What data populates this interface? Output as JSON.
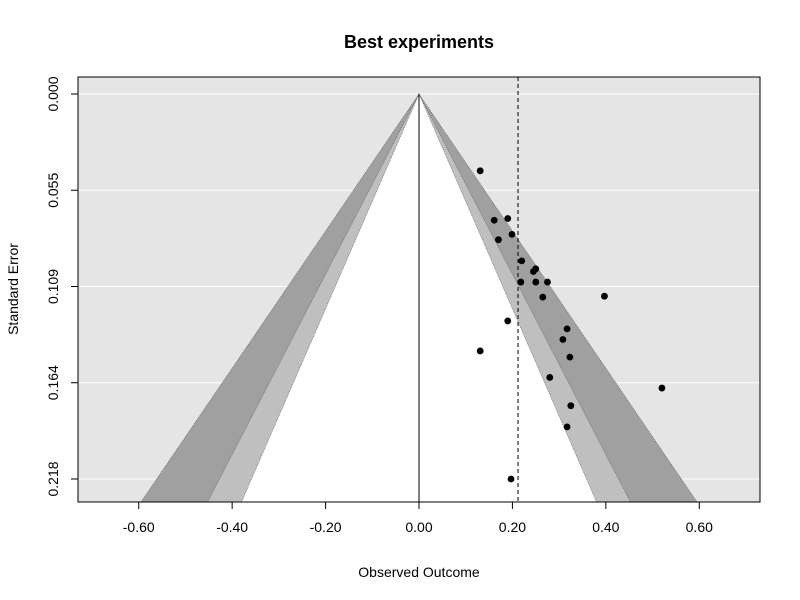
{
  "chart_data": {
    "type": "scatter",
    "title": "Best experiments",
    "xlabel": "Observed Outcome",
    "ylabel": "Standard Error",
    "xlim": [
      -0.73,
      0.73
    ],
    "ylim": [
      0.0,
      0.2265
    ],
    "y_reversed": true,
    "x_ticks": [
      -0.6,
      -0.4,
      -0.2,
      0.0,
      0.2,
      0.4,
      0.6
    ],
    "x_tick_labels": [
      "-0.60",
      "-0.40",
      "-0.20",
      "0.00",
      "0.20",
      "0.40",
      "0.60"
    ],
    "y_ticks": [
      0.0,
      0.0545,
      0.109,
      0.1635,
      0.218
    ],
    "y_tick_labels": [
      "0.000",
      "0.055",
      "0.109",
      "0.164",
      "0.218"
    ],
    "grid": true,
    "contour_funnel": {
      "center": 0.0,
      "z_levels": [
        1.645,
        1.96,
        2.576
      ],
      "colors": [
        "#ffffff",
        "#bfbfbf",
        "#a0a0a0"
      ],
      "background": "#e5e5e5"
    },
    "reference_line": {
      "x": 0.0,
      "style": "solid"
    },
    "estimate_line": {
      "x": 0.212,
      "style": "dashed"
    },
    "points": [
      {
        "x": 0.131,
        "y": 0.0435
      },
      {
        "x": 0.161,
        "y": 0.0715
      },
      {
        "x": 0.19,
        "y": 0.0705
      },
      {
        "x": 0.199,
        "y": 0.0795
      },
      {
        "x": 0.17,
        "y": 0.0825
      },
      {
        "x": 0.22,
        "y": 0.0945
      },
      {
        "x": 0.245,
        "y": 0.1005
      },
      {
        "x": 0.25,
        "y": 0.099
      },
      {
        "x": 0.218,
        "y": 0.1065
      },
      {
        "x": 0.25,
        "y": 0.1065
      },
      {
        "x": 0.275,
        "y": 0.1065
      },
      {
        "x": 0.265,
        "y": 0.115
      },
      {
        "x": 0.397,
        "y": 0.1145
      },
      {
        "x": 0.19,
        "y": 0.1285
      },
      {
        "x": 0.317,
        "y": 0.133
      },
      {
        "x": 0.308,
        "y": 0.139
      },
      {
        "x": 0.131,
        "y": 0.1455
      },
      {
        "x": 0.323,
        "y": 0.149
      },
      {
        "x": 0.28,
        "y": 0.1605
      },
      {
        "x": 0.52,
        "y": 0.1665
      },
      {
        "x": 0.325,
        "y": 0.1765
      },
      {
        "x": 0.317,
        "y": 0.1885
      },
      {
        "x": 0.197,
        "y": 0.218
      }
    ]
  }
}
